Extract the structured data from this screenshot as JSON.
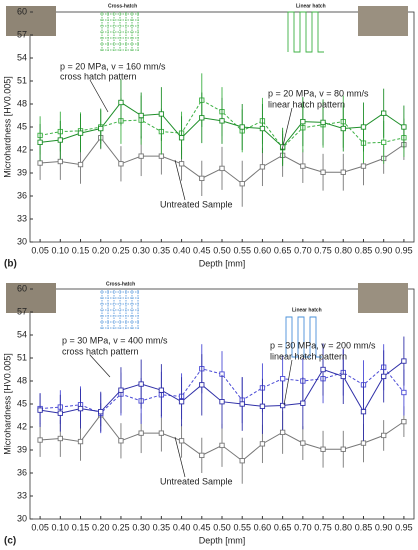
{
  "chart_data": [
    {
      "type": "line",
      "panel_label": "(b)",
      "x_label": "Depth [mm]",
      "y_label": "Microhardness [HV0.005]",
      "categories": [
        "0.05",
        "0.10",
        "0.15",
        "0.20",
        "0.25",
        "0.30",
        "0.35",
        "0.40",
        "0.45",
        "0.50",
        "0.55",
        "0.60",
        "0.65",
        "0.70",
        "0.75",
        "0.80",
        "0.85",
        "0.90",
        "0.95"
      ],
      "ylim": [
        30,
        60
      ],
      "yticks": [
        30,
        33,
        36,
        39,
        42,
        45,
        48,
        51,
        54,
        57,
        60
      ],
      "grid": false,
      "icon_color": "#3cb043",
      "series": [
        {
          "name": "Untreated Sample",
          "color": "#777777",
          "style": "solid",
          "values": [
            40.3,
            40.5,
            40.1,
            43.6,
            40.2,
            41.2,
            41.2,
            40.2,
            38.3,
            39.6,
            37.6,
            39.8,
            41.3,
            39.9,
            39.1,
            39.1,
            39.9,
            40.9,
            42.7
          ],
          "errors": [
            2.2,
            2.4,
            2.5,
            1.5,
            2.3,
            2.6,
            2.4,
            2.2,
            2.3,
            2.8,
            3.0,
            2.5,
            2.8,
            2.2,
            2.4,
            2.4,
            2.5,
            2.0,
            2.0
          ]
        },
        {
          "name": "cross hatch pattern",
          "color": "#3cb043",
          "style": "dashed",
          "values": [
            43.9,
            44.4,
            44.5,
            45.0,
            45.8,
            45.9,
            44.4,
            44.2,
            48.5,
            47.0,
            44.5,
            45.8,
            42.3,
            44.9,
            45.3,
            45.7,
            42.9,
            43.0,
            43.6
          ],
          "errors": [
            2.5,
            2.6,
            2.4,
            2.2,
            3.0,
            3.2,
            3.0,
            2.8,
            3.5,
            3.2,
            2.8,
            3.0,
            2.2,
            3.2,
            3.0,
            3.4,
            2.6,
            2.8,
            2.5
          ]
        },
        {
          "name": "linear hatch pattern",
          "color": "#1f8f2a",
          "style": "solid",
          "values": [
            43.0,
            43.3,
            44.2,
            44.8,
            48.2,
            46.5,
            46.7,
            43.6,
            46.2,
            45.8,
            45.0,
            44.8,
            42.4,
            45.7,
            45.6,
            44.8,
            45.0,
            46.8,
            45.0
          ],
          "errors": [
            2.4,
            2.5,
            2.5,
            2.6,
            3.0,
            3.0,
            3.5,
            2.8,
            3.3,
            3.0,
            3.0,
            3.2,
            2.5,
            3.2,
            3.0,
            3.0,
            3.2,
            3.2,
            2.8
          ]
        }
      ],
      "annotations": [
        "p = 20 MPa, v = 160 mm/s",
        "cross hatch pattern",
        "p = 20 MPa, v = 80 mm/s",
        "linear hatch pattern",
        "Untreated Sample",
        "Cross-hatch",
        "Linear hatch"
      ]
    },
    {
      "type": "line",
      "panel_label": "(c)",
      "x_label": "Depth [mm]",
      "y_label": "Microhardness [HV0.005]",
      "categories": [
        "0.05",
        "0.10",
        "0.15",
        "0.20",
        "0.25",
        "0.30",
        "0.35",
        "0.40",
        "0.45",
        "0.50",
        "0.55",
        "0.60",
        "0.65",
        "0.70",
        "0.75",
        "0.80",
        "0.85",
        "0.90",
        "0.95"
      ],
      "ylim": [
        30,
        60
      ],
      "yticks": [
        30,
        33,
        36,
        39,
        42,
        45,
        48,
        51,
        54,
        57,
        60
      ],
      "grid": false,
      "icon_color": "#4a90d9",
      "series": [
        {
          "name": "Untreated Sample",
          "color": "#777777",
          "style": "solid",
          "values": [
            40.3,
            40.5,
            40.1,
            43.6,
            40.2,
            41.2,
            41.2,
            40.2,
            38.3,
            39.6,
            37.6,
            39.8,
            41.3,
            39.9,
            39.1,
            39.1,
            39.9,
            40.9,
            42.7
          ],
          "errors": [
            2.2,
            2.4,
            2.5,
            1.5,
            2.3,
            2.6,
            2.4,
            2.2,
            2.3,
            2.8,
            3.0,
            2.5,
            2.8,
            2.2,
            2.4,
            2.4,
            2.5,
            2.0,
            2.0
          ]
        },
        {
          "name": "cross hatch pattern",
          "color": "#4b4bd6",
          "style": "dashed",
          "values": [
            44.4,
            44.6,
            44.9,
            43.8,
            46.3,
            45.4,
            46.2,
            46.0,
            49.6,
            48.9,
            45.5,
            47.1,
            48.3,
            48.0,
            48.3,
            49.1,
            47.5,
            49.8,
            46.5
          ],
          "errors": [
            2.0,
            2.2,
            2.4,
            2.6,
            2.8,
            3.0,
            3.0,
            3.0,
            3.2,
            3.0,
            3.0,
            3.2,
            3.0,
            3.0,
            3.2,
            3.0,
            3.2,
            3.0,
            3.0
          ]
        },
        {
          "name": "linear hatch pattern",
          "color": "#3030a8",
          "style": "solid",
          "values": [
            44.2,
            43.8,
            44.4,
            44.0,
            46.8,
            47.6,
            46.8,
            45.3,
            47.5,
            45.3,
            45.0,
            44.7,
            44.8,
            45.1,
            49.5,
            48.6,
            44.0,
            48.6,
            50.6
          ],
          "errors": [
            2.2,
            2.4,
            2.6,
            2.6,
            3.0,
            3.2,
            3.4,
            3.2,
            4.0,
            3.5,
            3.5,
            3.6,
            3.2,
            3.4,
            3.4,
            3.6,
            3.8,
            3.4,
            3.2
          ]
        }
      ],
      "annotations": [
        "p = 30 MPa, v = 400 mm/s",
        "cross hatch pattern",
        "p = 30 MPa, v = 200 mm/s",
        "linear hatch pattern",
        "Untreated Sample",
        "Cross-hatch",
        "Linear hatch"
      ]
    }
  ]
}
